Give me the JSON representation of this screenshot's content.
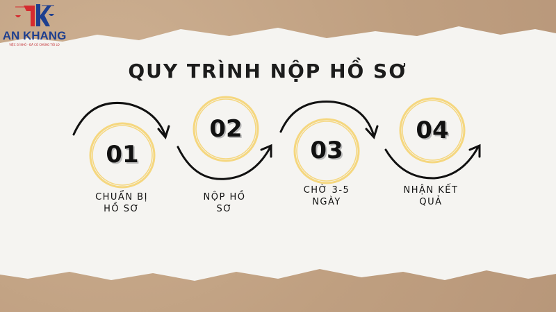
{
  "logo": {
    "brand": "AN KHANG",
    "tagline": "VIỆC GÌ KHÓ - ĐÃ CÓ CHÚNG TÔI LO",
    "mark": "AK scales of justice",
    "colors": {
      "red": "#d52b2f",
      "blue": "#1e3f8f"
    }
  },
  "title": "QUY TRÌNH NỘP HỒ SƠ",
  "colors": {
    "circle": "#f5d77f",
    "arrow": "#111111",
    "paper": "#f5f4f1",
    "background": "#c2a283"
  },
  "steps": [
    {
      "number": "01",
      "label_line1": "CHUẨN BỊ",
      "label_line2": "HỒ SƠ"
    },
    {
      "number": "02",
      "label_line1": "NỘP HỒ",
      "label_line2": "SƠ"
    },
    {
      "number": "03",
      "label_line1": "CHỜ 3-5",
      "label_line2": "NGÀY"
    },
    {
      "number": "04",
      "label_line1": "NHẬN KẾT",
      "label_line2": "QUẢ"
    }
  ]
}
